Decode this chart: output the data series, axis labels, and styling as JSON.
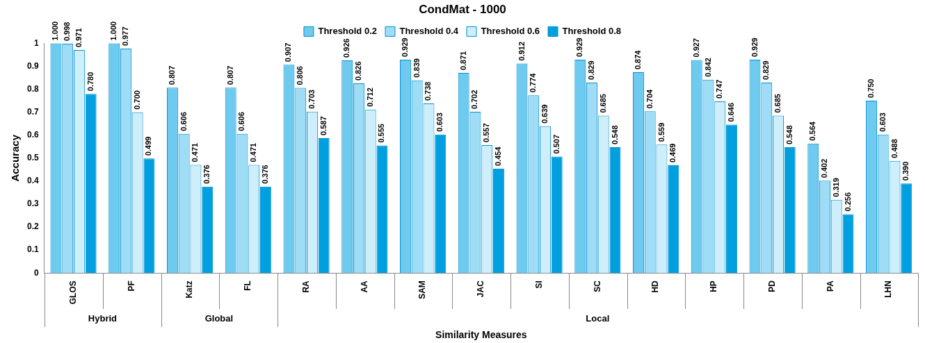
{
  "chart_data": {
    "type": "bar",
    "title": "CondMat - 1000",
    "xlabel": "Similarity Measures",
    "ylabel": "Accuracy",
    "categories": [
      "GLOS",
      "PF",
      "Katz",
      "FL",
      "RA",
      "AA",
      "SAM",
      "JAC",
      "SI",
      "SC",
      "HD",
      "HP",
      "PD",
      "PA",
      "LHN"
    ],
    "series": [
      {
        "name": "Threshold 0.2",
        "color": "#6fcaf0",
        "values": [
          1.0,
          1.0,
          0.807,
          0.807,
          0.907,
          0.926,
          0.929,
          0.871,
          0.912,
          0.929,
          0.874,
          0.927,
          0.929,
          0.564,
          0.75
        ],
        "value_labels": [
          "1.000",
          "1.000",
          "0.807",
          "0.807",
          "0.907",
          "0.926",
          "0.929",
          "0.871",
          "0.912",
          "0.929",
          "0.874",
          "0.927",
          "0.929",
          "0.564",
          "0.750"
        ]
      },
      {
        "name": "Threshold 0.4",
        "color": "#9fdcf5",
        "values": [
          0.998,
          0.977,
          0.606,
          0.606,
          0.806,
          0.826,
          0.839,
          0.702,
          0.774,
          0.829,
          0.704,
          0.842,
          0.829,
          0.402,
          0.603
        ],
        "value_labels": [
          "0.998",
          "0.977",
          "0.606",
          "0.606",
          "0.806",
          "0.826",
          "0.839",
          "0.702",
          "0.774",
          "0.829",
          "0.704",
          "0.842",
          "0.829",
          "0.402",
          "0.603"
        ]
      },
      {
        "name": "Threshold 0.6",
        "color": "#cdeefa",
        "values": [
          0.971,
          0.7,
          0.471,
          0.471,
          0.703,
          0.712,
          0.738,
          0.557,
          0.639,
          0.685,
          0.559,
          0.747,
          0.685,
          0.319,
          0.488
        ],
        "value_labels": [
          "0.971",
          "0.700",
          "0.471",
          "0.471",
          "0.703",
          "0.712",
          "0.738",
          "0.557",
          "0.639",
          "0.685",
          "0.559",
          "0.747",
          "0.685",
          "0.319",
          "0.488"
        ]
      },
      {
        "name": "Threshold 0.8",
        "color": "#00a0e0",
        "values": [
          0.78,
          0.499,
          0.376,
          0.376,
          0.587,
          0.555,
          0.603,
          0.454,
          0.507,
          0.548,
          0.469,
          0.646,
          0.548,
          0.256,
          0.39
        ],
        "value_labels": [
          "0.780",
          "0.499",
          "0.376",
          "0.376",
          "0.587",
          "0.555",
          "0.603",
          "0.454",
          "0.507",
          "0.548",
          "0.469",
          "0.646",
          "0.548",
          "0.256",
          "0.390"
        ]
      }
    ],
    "ylim": [
      0,
      1
    ],
    "yticks": [
      0,
      0.1,
      0.2,
      0.3,
      0.4,
      0.5,
      0.6,
      0.7,
      0.8,
      0.9,
      1
    ],
    "grid": false,
    "legend": "top",
    "annotations": [
      "Hybrid",
      "Global",
      "Local"
    ]
  }
}
